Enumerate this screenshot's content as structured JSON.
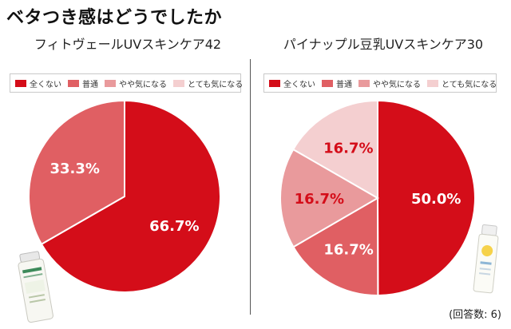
{
  "page_title": "ベタつき感はどうでしたか",
  "colors": {
    "全く無い": "#d40d19",
    "普通": "#e05f63",
    "やや気になる": "#e99a9c",
    "とても気になる": "#f4cfd0"
  },
  "chart_data": [
    {
      "type": "pie",
      "title": "フィトヴェールUVスキンケア42",
      "legend_position": "top",
      "legend": [
        "全くない",
        "普通",
        "やや気になる",
        "とても気になる"
      ],
      "slices": [
        {
          "label": "全くない",
          "value": 66.7,
          "display": "66.7%"
        },
        {
          "label": "普通",
          "value": 33.3,
          "display": "33.3%"
        }
      ]
    },
    {
      "type": "pie",
      "title": "パイナップル豆乳UVスキンケア30",
      "legend_position": "top",
      "legend": [
        "全くない",
        "普通",
        "やや気になる",
        "とても気になる"
      ],
      "slices": [
        {
          "label": "全くない",
          "value": 50.0,
          "display": "50.0%"
        },
        {
          "label": "普通",
          "value": 16.7,
          "display": "16.7%"
        },
        {
          "label": "やや気になる",
          "value": 16.7,
          "display": "16.7%"
        },
        {
          "label": "とても気になる",
          "value": 16.7,
          "display": "16.7%"
        }
      ]
    }
  ],
  "response_count_note": "(回答数: 6)"
}
